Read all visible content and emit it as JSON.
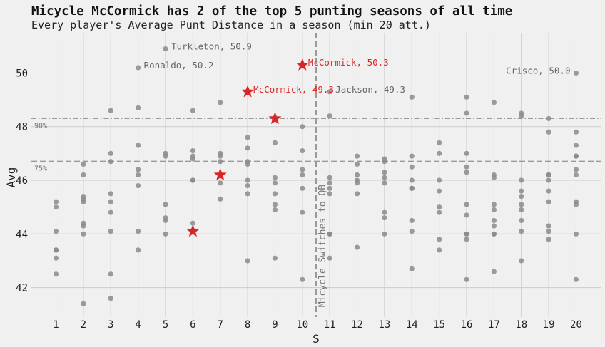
{
  "chart_data": {
    "type": "scatter",
    "title": "Micycle McCormick has 2 of the top 5 punting seasons of all time",
    "subtitle": "Every player's Average Punt Distance in a season (min 20 att.)",
    "xlabel": "S",
    "ylabel": "Avg",
    "xlim": [
      0.1,
      20.9
    ],
    "ylim": [
      40.9,
      51.5
    ],
    "xticks": [
      1,
      2,
      3,
      4,
      5,
      6,
      7,
      8,
      9,
      10,
      11,
      12,
      13,
      14,
      15,
      16,
      17,
      18,
      19,
      20
    ],
    "yticks": [
      42,
      44,
      46,
      48,
      50
    ],
    "grid": true,
    "colors": {
      "background": "#f0f0f0",
      "points": "#8b8b8b",
      "highlight": "#d62728",
      "grid": "#cbcbcb",
      "ref_line": "#999999"
    },
    "reference_lines": [
      {
        "type": "horizontal",
        "y": 48.3,
        "label": "90%",
        "style": "dashdot"
      },
      {
        "type": "horizontal",
        "y": 46.7,
        "label": "75%",
        "style": "dashed"
      },
      {
        "type": "vertical",
        "x": 10.5,
        "label": "Micycle Switches to QB",
        "style": "dashed"
      }
    ],
    "series": [
      {
        "points": [
          [
            1,
            45.2
          ],
          [
            1,
            45.0
          ],
          [
            1,
            44.1
          ],
          [
            1,
            43.4
          ],
          [
            1,
            43.4
          ],
          [
            1,
            43.1
          ],
          [
            1,
            42.5
          ],
          [
            2,
            46.6
          ],
          [
            2,
            46.2
          ],
          [
            2,
            45.4
          ],
          [
            2,
            45.3
          ],
          [
            2,
            45.2
          ],
          [
            2,
            44.4
          ],
          [
            2,
            44.3
          ],
          [
            2,
            44.0
          ],
          [
            2,
            41.4
          ],
          [
            3,
            48.6
          ],
          [
            3,
            47.0
          ],
          [
            3,
            46.7
          ],
          [
            3,
            45.5
          ],
          [
            3,
            45.2
          ],
          [
            3,
            44.8
          ],
          [
            3,
            44.1
          ],
          [
            3,
            42.5
          ],
          [
            3,
            41.6
          ],
          [
            4,
            50.2
          ],
          [
            4,
            48.7
          ],
          [
            4,
            47.3
          ],
          [
            4,
            46.4
          ],
          [
            4,
            46.2
          ],
          [
            4,
            45.8
          ],
          [
            4,
            44.1
          ],
          [
            4,
            43.4
          ],
          [
            5,
            50.9
          ],
          [
            5,
            47.0
          ],
          [
            5,
            46.9
          ],
          [
            5,
            45.1
          ],
          [
            5,
            44.6
          ],
          [
            5,
            44.5
          ],
          [
            5,
            44.0
          ],
          [
            6,
            48.6
          ],
          [
            6,
            47.1
          ],
          [
            6,
            46.9
          ],
          [
            6,
            46.8
          ],
          [
            6,
            46.0
          ],
          [
            6,
            46.0
          ],
          [
            6,
            44.4
          ],
          [
            7,
            48.9
          ],
          [
            7,
            47.0
          ],
          [
            7,
            46.9
          ],
          [
            7,
            46.7
          ],
          [
            7,
            45.9
          ],
          [
            7,
            45.3
          ],
          [
            8,
            47.6
          ],
          [
            8,
            47.2
          ],
          [
            8,
            46.7
          ],
          [
            8,
            46.6
          ],
          [
            8,
            46.0
          ],
          [
            8,
            45.8
          ],
          [
            8,
            45.5
          ],
          [
            8,
            43.0
          ],
          [
            9,
            47.4
          ],
          [
            9,
            46.1
          ],
          [
            9,
            45.9
          ],
          [
            9,
            45.5
          ],
          [
            9,
            45.1
          ],
          [
            9,
            44.9
          ],
          [
            9,
            43.1
          ],
          [
            10,
            48.0
          ],
          [
            10,
            47.1
          ],
          [
            10,
            46.4
          ],
          [
            10,
            46.2
          ],
          [
            10,
            45.7
          ],
          [
            10,
            44.8
          ],
          [
            10,
            42.3
          ],
          [
            11,
            49.3
          ],
          [
            11,
            48.4
          ],
          [
            11,
            46.1
          ],
          [
            11,
            45.9
          ],
          [
            11,
            45.7
          ],
          [
            11,
            45.5
          ],
          [
            11,
            44.0
          ],
          [
            11,
            44.0
          ],
          [
            11,
            43.1
          ],
          [
            12,
            46.9
          ],
          [
            12,
            46.6
          ],
          [
            12,
            46.2
          ],
          [
            12,
            46.0
          ],
          [
            12,
            45.9
          ],
          [
            12,
            45.5
          ],
          [
            12,
            43.5
          ],
          [
            13,
            46.8
          ],
          [
            13,
            46.7
          ],
          [
            13,
            46.3
          ],
          [
            13,
            46.1
          ],
          [
            13,
            45.9
          ],
          [
            13,
            44.8
          ],
          [
            13,
            44.6
          ],
          [
            13,
            44.0
          ],
          [
            14,
            49.1
          ],
          [
            14,
            46.9
          ],
          [
            14,
            46.5
          ],
          [
            14,
            46.0
          ],
          [
            14,
            45.7
          ],
          [
            14,
            45.7
          ],
          [
            14,
            44.5
          ],
          [
            14,
            44.1
          ],
          [
            14,
            42.7
          ],
          [
            15,
            47.4
          ],
          [
            15,
            47.0
          ],
          [
            15,
            46.0
          ],
          [
            15,
            45.6
          ],
          [
            15,
            45.0
          ],
          [
            15,
            44.8
          ],
          [
            15,
            43.8
          ],
          [
            15,
            43.4
          ],
          [
            16,
            49.1
          ],
          [
            16,
            48.5
          ],
          [
            16,
            47.0
          ],
          [
            16,
            46.5
          ],
          [
            16,
            46.3
          ],
          [
            16,
            45.1
          ],
          [
            16,
            44.7
          ],
          [
            16,
            44.0
          ],
          [
            16,
            44.0
          ],
          [
            16,
            43.8
          ],
          [
            16,
            42.3
          ],
          [
            17,
            48.9
          ],
          [
            17,
            46.2
          ],
          [
            17,
            46.1
          ],
          [
            17,
            45.1
          ],
          [
            17,
            44.9
          ],
          [
            17,
            44.5
          ],
          [
            17,
            44.3
          ],
          [
            17,
            44.0
          ],
          [
            17,
            44.0
          ],
          [
            17,
            42.6
          ],
          [
            18,
            48.5
          ],
          [
            18,
            48.4
          ],
          [
            18,
            46.0
          ],
          [
            18,
            45.6
          ],
          [
            18,
            45.4
          ],
          [
            18,
            45.1
          ],
          [
            18,
            44.9
          ],
          [
            18,
            44.5
          ],
          [
            18,
            44.1
          ],
          [
            18,
            43.0
          ],
          [
            19,
            48.3
          ],
          [
            19,
            47.8
          ],
          [
            19,
            46.2
          ],
          [
            19,
            46.2
          ],
          [
            19,
            46.0
          ],
          [
            19,
            45.6
          ],
          [
            19,
            45.2
          ],
          [
            19,
            44.3
          ],
          [
            19,
            44.1
          ],
          [
            19,
            43.8
          ],
          [
            20,
            50.0
          ],
          [
            20,
            47.8
          ],
          [
            20,
            47.3
          ],
          [
            20,
            46.9
          ],
          [
            20,
            46.9
          ],
          [
            20,
            46.4
          ],
          [
            20,
            46.2
          ],
          [
            20,
            45.2
          ],
          [
            20,
            45.1
          ],
          [
            20,
            44.0
          ],
          [
            20,
            42.3
          ]
        ]
      },
      {
        "points": [
          [
            6,
            44.1
          ],
          [
            7,
            46.2
          ],
          [
            8,
            49.3
          ],
          [
            9,
            48.3
          ],
          [
            10,
            50.3
          ]
        ]
      }
    ],
    "annotations": [
      {
        "x": 5,
        "y": 50.9,
        "text": "Turkleton, 50.9",
        "color": "grey"
      },
      {
        "x": 4,
        "y": 50.2,
        "text": "Ronaldo, 50.2",
        "color": "grey"
      },
      {
        "x": 10,
        "y": 50.3,
        "text": "McCormick, 50.3",
        "color": "red"
      },
      {
        "x": 8,
        "y": 49.3,
        "text": "McCormick, 49.3",
        "color": "red"
      },
      {
        "x": 11,
        "y": 49.3,
        "text": "Jackson, 49.3",
        "color": "grey"
      },
      {
        "x": 20,
        "y": 50.0,
        "text": "Crisco, 50.0",
        "color": "grey",
        "align": "right"
      }
    ]
  }
}
